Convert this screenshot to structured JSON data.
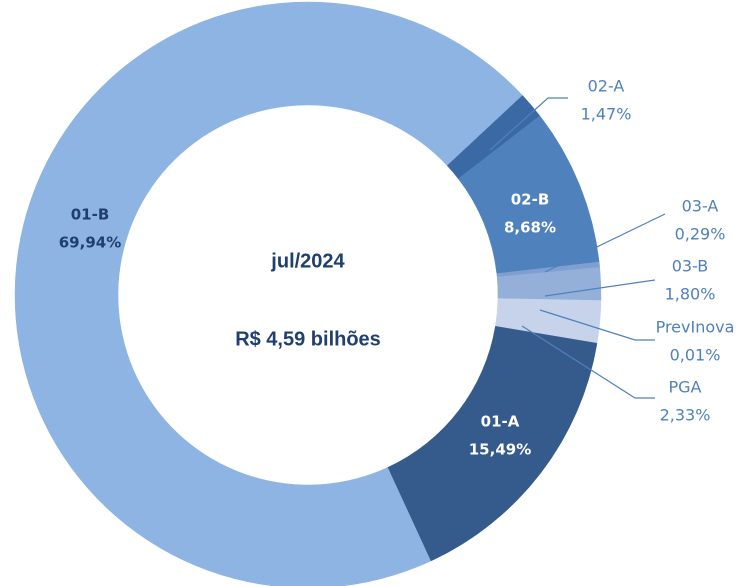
{
  "chart_data": {
    "type": "donut",
    "center_labels": [
      "jul/2024",
      "R$ 4,59 bilhões"
    ],
    "categories": [
      "02-A",
      "02-B",
      "03-A",
      "03-B",
      "PrevInova",
      "PGA",
      "01-A",
      "01-B"
    ],
    "values": [
      1.47,
      8.68,
      0.29,
      1.8,
      0.01,
      2.33,
      15.49,
      69.94
    ],
    "value_labels": [
      "1,47%",
      "8,68%",
      "0,29%",
      "1,80%",
      "0,01%",
      "2,33%",
      "15,49%",
      "69,94%"
    ],
    "colors": [
      "#3b69a3",
      "#4f81bd",
      "#7f9fd0",
      "#94b0d8",
      "#a9bfe0",
      "#c6d3ea",
      "#355b8c",
      "#8db4e2"
    ]
  }
}
